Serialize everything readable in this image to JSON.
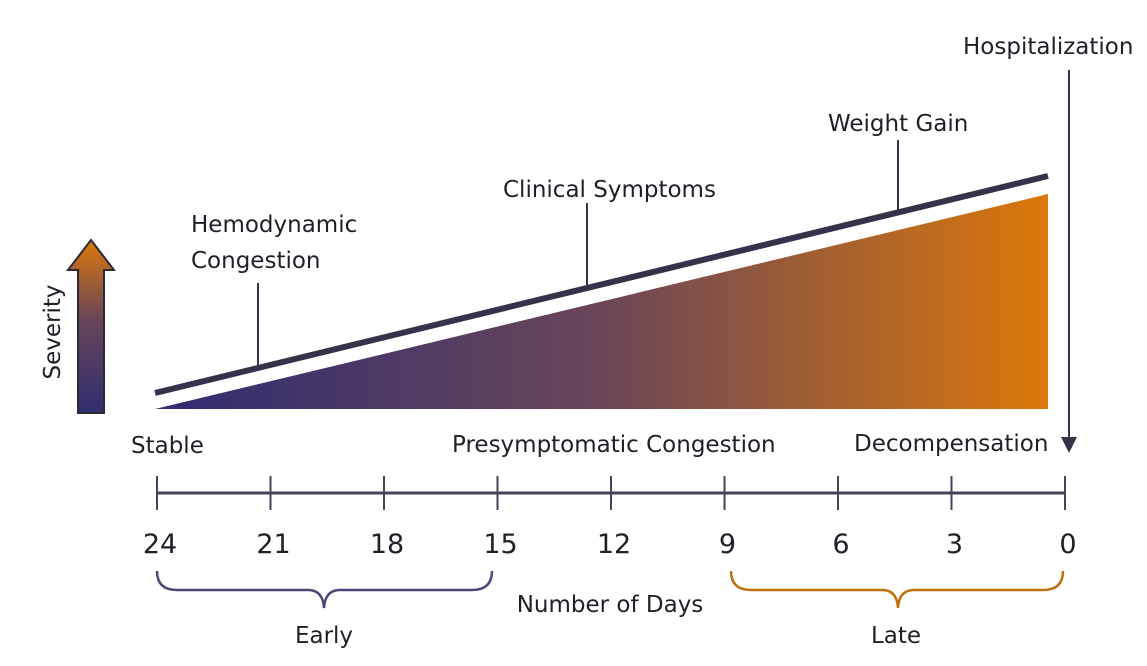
{
  "colors": {
    "gradient_start": "#2e2d72",
    "gradient_mid": "#6a4658",
    "gradient_end": "#dc780a",
    "line": "#35324a",
    "axis": "#45425a",
    "early": "#4f4876",
    "late": "#c0710e"
  },
  "severity_label": "Severity",
  "hospitalization_label": "Hospitalization",
  "callouts": {
    "hemodynamic_line1": "Hemodynamic",
    "hemodynamic_line2": "Congestion",
    "clinical": "Clinical Symptoms",
    "weight": "Weight Gain"
  },
  "phases": {
    "stable": "Stable",
    "presymptomatic": "Presymptomatic Congestion",
    "decompensation": "Decompensation"
  },
  "axis": {
    "ticks": [
      "24",
      "21",
      "18",
      "15",
      "12",
      "9",
      "6",
      "3",
      "0"
    ],
    "title": "Number of Days"
  },
  "brackets": {
    "early": "Early",
    "late": "Late"
  }
}
